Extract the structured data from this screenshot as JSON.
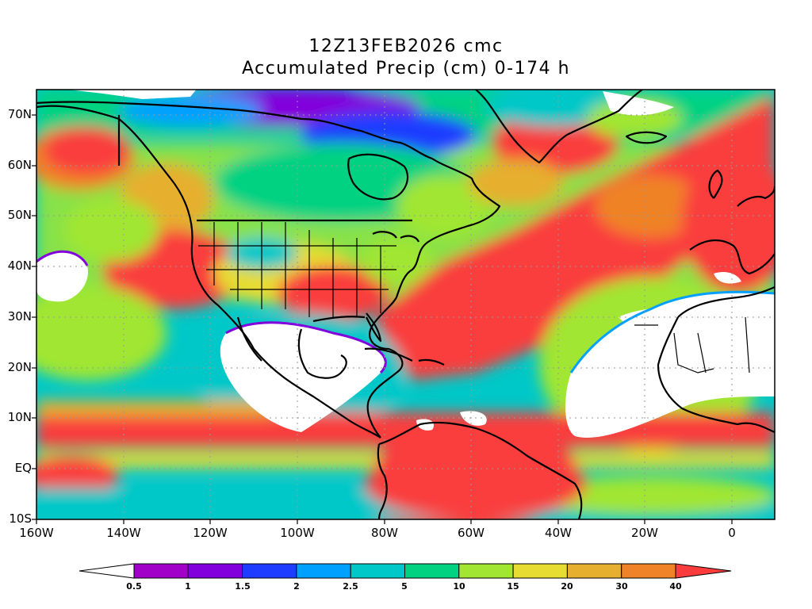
{
  "title_line1": "12Z13FEB2026 cmc",
  "title_line2": "Accumulated Precip (cm) 0-174 h",
  "y_ticks": [
    "70N",
    "60N",
    "50N",
    "40N",
    "30N",
    "20N",
    "10N",
    "EQ",
    "10S"
  ],
  "x_ticks": [
    "160W",
    "140W",
    "120W",
    "100W",
    "80W",
    "60W",
    "40W",
    "20W",
    "0"
  ],
  "colorbar": {
    "levels": [
      "0.5",
      "1",
      "1.5",
      "2",
      "2.5",
      "5",
      "10",
      "15",
      "20",
      "30",
      "40"
    ],
    "colors": [
      "#ffffff",
      "#a000c8",
      "#8200dc",
      "#1e3cff",
      "#00a0ff",
      "#00c8c8",
      "#00d282",
      "#a0e632",
      "#e6dc32",
      "#e6af2d",
      "#f08228",
      "#fa3c3c"
    ]
  },
  "map": {
    "projection": "cylindrical",
    "lon_range": [
      -160,
      10
    ],
    "lat_range": [
      -10,
      75
    ],
    "field": "accumulated precipitation",
    "units": "cm"
  }
}
